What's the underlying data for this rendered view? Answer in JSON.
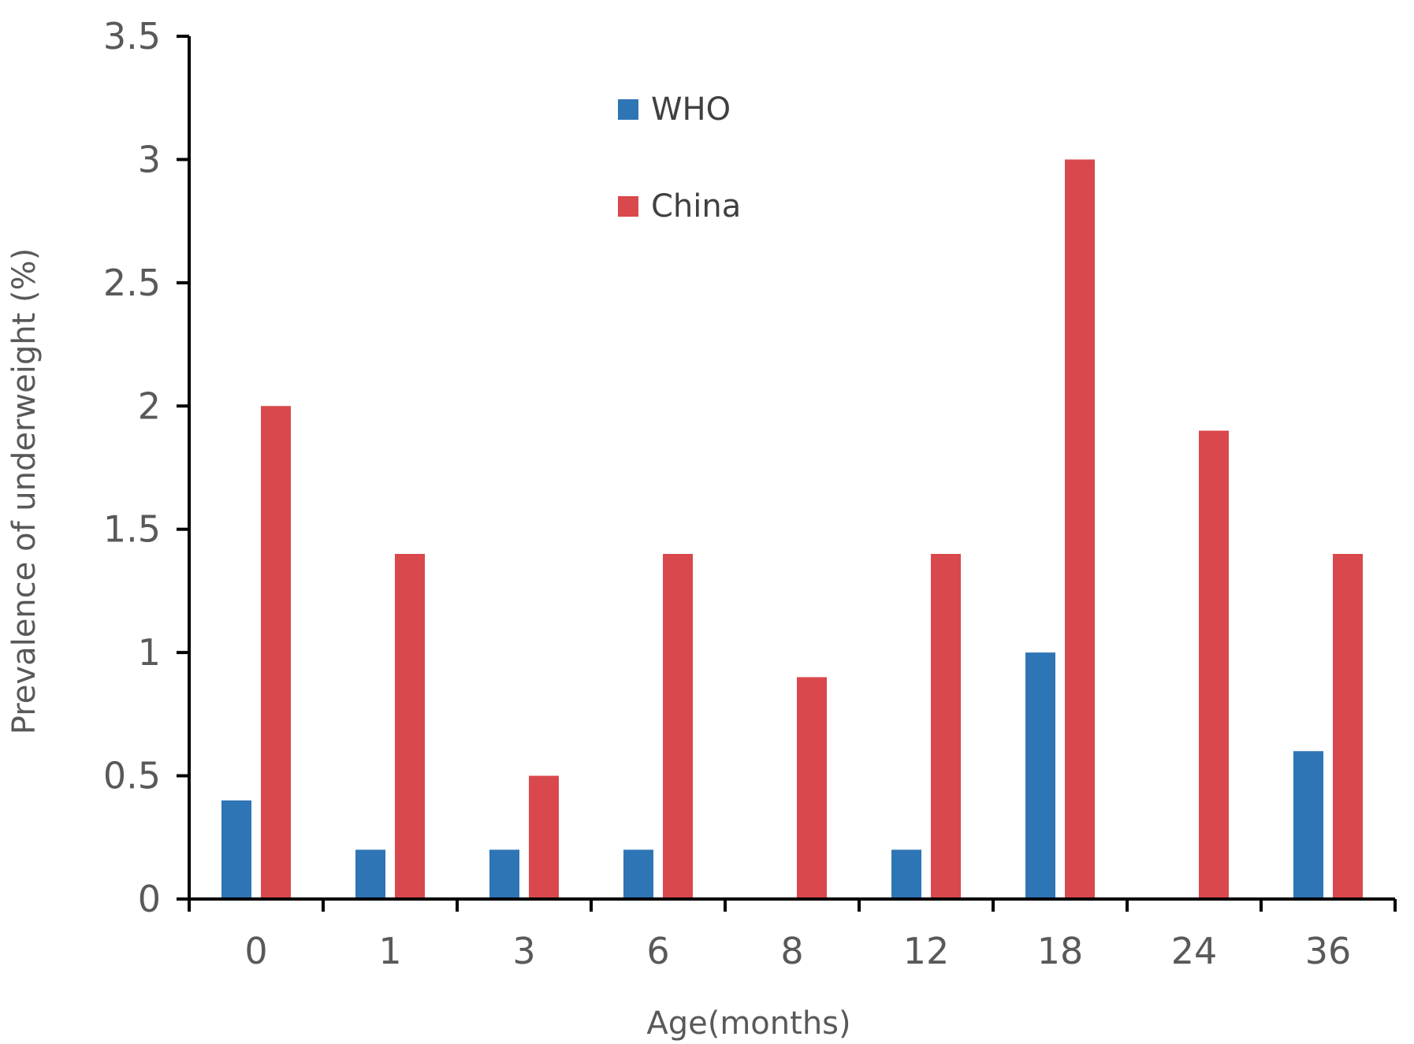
{
  "chart_data": {
    "type": "bar",
    "title": "",
    "xlabel": "Age(months)",
    "ylabel": "Prevalence of underweight (%)",
    "categories": [
      "0",
      "1",
      "3",
      "6",
      "8",
      "12",
      "18",
      "24",
      "36"
    ],
    "series": [
      {
        "name": "WHO",
        "color": "#2e75b6",
        "values": [
          0.4,
          0.2,
          0.2,
          0.2,
          0,
          0.2,
          1.0,
          0,
          0.6
        ]
      },
      {
        "name": "China",
        "color": "#d9484c",
        "values": [
          2.0,
          1.4,
          0.5,
          1.4,
          0.9,
          1.4,
          3.0,
          1.9,
          1.4
        ]
      }
    ],
    "ylim": [
      0,
      3.5
    ],
    "yticks": [
      "0",
      "0.5",
      "1",
      "1.5",
      "2",
      "2.5",
      "3",
      "3.5"
    ],
    "grid": false,
    "legend_position": "top-center"
  }
}
